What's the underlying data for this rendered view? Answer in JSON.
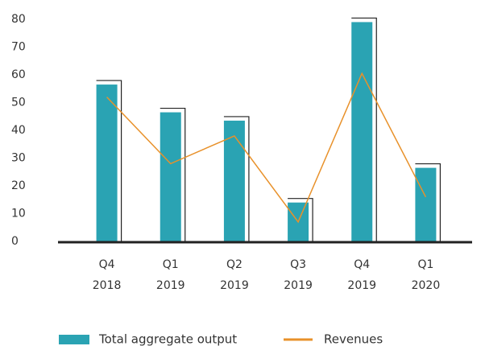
{
  "chart_data": {
    "type": "bar",
    "categories": [
      [
        "Q4",
        "2018"
      ],
      [
        "Q1",
        "2019"
      ],
      [
        "Q2",
        "2019"
      ],
      [
        "Q3",
        "2019"
      ],
      [
        "Q4",
        "2019"
      ],
      [
        "Q1",
        "2020"
      ]
    ],
    "series": [
      {
        "name": "Total aggregate output",
        "type": "bar",
        "color": "#2aa3b3",
        "values": [
          56.5,
          46.5,
          43.5,
          14,
          79,
          26.5
        ]
      },
      {
        "name": "Revenues",
        "type": "line",
        "color": "#e8912a",
        "values": [
          52,
          28,
          38,
          7,
          60.5,
          16
        ]
      }
    ],
    "ylim": [
      0,
      80
    ],
    "yticks": [
      0,
      10,
      20,
      30,
      40,
      50,
      60,
      70,
      80
    ],
    "grid": false,
    "legend": "bottom"
  }
}
